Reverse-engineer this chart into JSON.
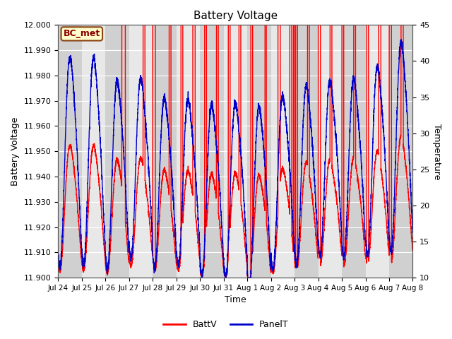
{
  "title": "Battery Voltage",
  "xlabel": "Time",
  "ylabel_left": "Battery Voltage",
  "ylabel_right": "Temperature",
  "ylim_left": [
    11.9,
    12.0
  ],
  "ylim_right": [
    10,
    45
  ],
  "yticks_left": [
    11.9,
    11.91,
    11.92,
    11.93,
    11.94,
    11.95,
    11.96,
    11.97,
    11.98,
    11.99,
    12.0
  ],
  "yticks_right": [
    10,
    15,
    20,
    25,
    30,
    35,
    40,
    45
  ],
  "xtick_labels": [
    "Jul 24",
    "Jul 25",
    "Jul 26",
    "Jul 27",
    "Jul 28",
    "Jul 29",
    "Jul 30",
    "Jul 31",
    "Aug 1",
    "Aug 2",
    "Aug 3",
    "Aug 4",
    "Aug 5",
    "Aug 6",
    "Aug 7",
    "Aug 8"
  ],
  "annotation_text": "BC_met",
  "annotation_bg": "#ffffcc",
  "annotation_border": "#8B4513",
  "bg_color": "#ffffff",
  "strip_color1": "#d0d0d0",
  "strip_color2": "#e8e8e8",
  "red_line_color": "#ff0000",
  "blue_line_color": "#0000cc",
  "legend_entries": [
    "BattV",
    "PanelT"
  ],
  "num_days": 15
}
